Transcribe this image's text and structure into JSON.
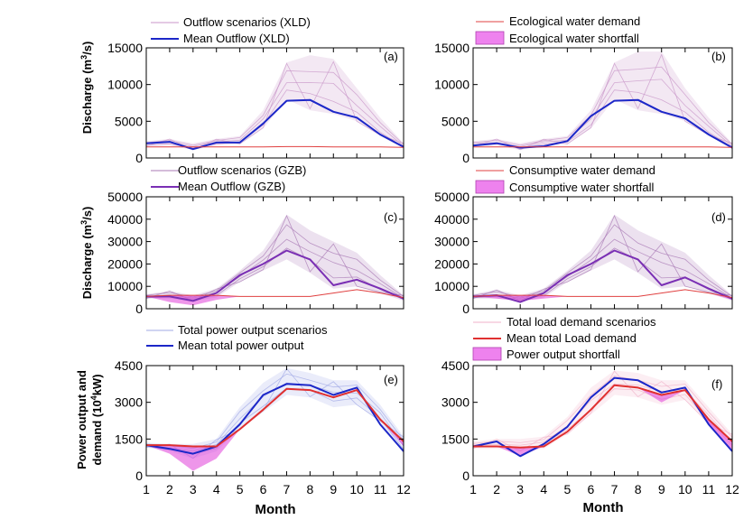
{
  "chart_data": [
    {
      "id": "a",
      "type": "line",
      "panel_label": "(a)",
      "ylabel": "Discharge (m3/s)",
      "ylabel_main": "Discharge (m",
      "ylabel_sup": "3",
      "ylabel_tail": "/s)",
      "ylim": [
        0,
        15000
      ],
      "yticks": [
        "0",
        "5000",
        "10000",
        "15000"
      ],
      "ytick_values": [
        0,
        5000,
        10000,
        15000
      ],
      "x": [
        1,
        2,
        3,
        4,
        5,
        6,
        7,
        8,
        9,
        10,
        11,
        12
      ],
      "legend": [
        "Outflow scenarios (XLD)",
        "Mean Outflow (XLD)"
      ],
      "series": [
        {
          "name": "Outflow scenarios (XLD)",
          "color": "#c896c8",
          "style": "band",
          "lower": [
            1600,
            1700,
            1100,
            1700,
            1900,
            4000,
            8000,
            6500,
            6000,
            5000,
            3000,
            1300
          ],
          "upper": [
            2300,
            2600,
            2000,
            2600,
            3000,
            6500,
            13000,
            14000,
            13500,
            9500,
            5500,
            2000
          ]
        },
        {
          "name": "Mean Outflow (XLD)",
          "color": "#1c27c8",
          "width": 2,
          "values": [
            2000,
            2200,
            1200,
            2100,
            2100,
            4700,
            7800,
            7900,
            6300,
            5500,
            3200,
            1500
          ]
        },
        {
          "name": "Ecological water demand",
          "color": "#e04040",
          "width": 1,
          "values": [
            1500,
            1500,
            1500,
            1500,
            1500,
            1500,
            1550,
            1550,
            1500,
            1500,
            1500,
            1450
          ]
        }
      ]
    },
    {
      "id": "b",
      "type": "line",
      "panel_label": "(b)",
      "ylim": [
        0,
        15000
      ],
      "yticks": [
        "0",
        "5000",
        "10000",
        "15000"
      ],
      "ytick_values": [
        0,
        5000,
        10000,
        15000
      ],
      "x": [
        1,
        2,
        3,
        4,
        5,
        6,
        7,
        8,
        9,
        10,
        11,
        12
      ],
      "legend": [
        "Ecological water demand",
        "Ecological water shortfall"
      ],
      "series": [
        {
          "name": "Outflow scenarios",
          "color": "#c896c8",
          "style": "band",
          "lower": [
            1600,
            1700,
            1100,
            1700,
            1900,
            4000,
            8000,
            6500,
            6000,
            5000,
            3000,
            1300
          ],
          "upper": [
            2300,
            2600,
            2000,
            2600,
            3000,
            6500,
            13000,
            14500,
            14500,
            9500,
            5500,
            2000
          ]
        },
        {
          "name": "Mean Outflow",
          "color": "#1c27c8",
          "width": 2,
          "values": [
            1700,
            2000,
            1400,
            1600,
            2300,
            5700,
            7800,
            7900,
            6300,
            5400,
            3200,
            1400
          ]
        },
        {
          "name": "Ecological water demand",
          "color": "#e04040",
          "width": 1,
          "values": [
            1500,
            1500,
            1500,
            1500,
            1500,
            1500,
            1500,
            1500,
            1500,
            1500,
            1500,
            1450
          ]
        }
      ]
    },
    {
      "id": "c",
      "type": "line",
      "panel_label": "(c)",
      "ylabel": "Discharge (m3/s)",
      "ylabel_main": "Discharge (m",
      "ylabel_sup": "3",
      "ylabel_tail": "/s)",
      "ylim": [
        0,
        50000
      ],
      "yticks": [
        "0",
        "10000",
        "20000",
        "30000",
        "40000",
        "50000"
      ],
      "ytick_values": [
        0,
        10000,
        20000,
        30000,
        40000,
        50000
      ],
      "x": [
        1,
        2,
        3,
        4,
        5,
        6,
        7,
        8,
        9,
        10,
        11,
        12
      ],
      "legend": [
        "Outflow scenarios (GZB)",
        "Mean Outflow (GZB)"
      ],
      "series": [
        {
          "name": "Outflow scenarios (GZB)",
          "color": "#a878b4",
          "style": "band",
          "lower": [
            4500,
            4500,
            3500,
            5000,
            12000,
            17000,
            22000,
            16000,
            9000,
            10000,
            7000,
            3500
          ],
          "upper": [
            6500,
            8000,
            6000,
            9000,
            17000,
            26000,
            42000,
            35000,
            30000,
            25000,
            15000,
            6000
          ]
        },
        {
          "name": "Mean Outflow (GZB)",
          "color": "#7a2fb4",
          "width": 2,
          "values": [
            5500,
            5500,
            3500,
            7000,
            15000,
            20000,
            26000,
            22000,
            10500,
            13000,
            9000,
            4500
          ]
        },
        {
          "name": "Consumptive water demand",
          "color": "#e04040",
          "width": 1,
          "values": [
            5500,
            6000,
            6000,
            6000,
            5500,
            5500,
            5500,
            5500,
            7000,
            8500,
            7000,
            5000
          ]
        },
        {
          "name": "Consumptive water shortfall",
          "color": "#e040d8",
          "style": "shortfall",
          "lower": [
            5500,
            3000,
            1500,
            4000,
            5500,
            5500,
            5500,
            5500,
            7000,
            8500,
            7000,
            4500
          ],
          "upper": [
            5500,
            6000,
            6000,
            6000,
            5500,
            5500,
            5500,
            5500,
            7000,
            8500,
            7000,
            5000
          ]
        }
      ]
    },
    {
      "id": "d",
      "type": "line",
      "panel_label": "(d)",
      "ylim": [
        0,
        50000
      ],
      "yticks": [
        "0",
        "10000",
        "20000",
        "30000",
        "40000",
        "50000"
      ],
      "ytick_values": [
        0,
        10000,
        20000,
        30000,
        40000,
        50000
      ],
      "x": [
        1,
        2,
        3,
        4,
        5,
        6,
        7,
        8,
        9,
        10,
        11,
        12
      ],
      "legend": [
        "Consumptive water demand",
        "Consumptive water shortfall"
      ],
      "series": [
        {
          "name": "Outflow scenarios (GZB)",
          "color": "#a878b4",
          "style": "band",
          "lower": [
            4500,
            4500,
            3500,
            5000,
            12000,
            17000,
            22000,
            16000,
            9000,
            10000,
            7000,
            3500
          ],
          "upper": [
            6500,
            8500,
            6000,
            9000,
            17000,
            26000,
            42000,
            35000,
            30000,
            25000,
            15000,
            6000
          ]
        },
        {
          "name": "Mean Outflow (GZB)",
          "color": "#7a2fb4",
          "width": 2,
          "values": [
            5500,
            6000,
            3000,
            7000,
            15000,
            20000,
            26000,
            22000,
            10500,
            14000,
            9000,
            4500
          ]
        },
        {
          "name": "Consumptive water demand",
          "color": "#e04040",
          "width": 1,
          "values": [
            5500,
            6000,
            6000,
            6000,
            5500,
            5500,
            5500,
            5500,
            7000,
            8500,
            7000,
            5000
          ]
        },
        {
          "name": "Consumptive water shortfall",
          "color": "#e040d8",
          "style": "shortfall",
          "lower": [
            5500,
            4500,
            3500,
            4500,
            5500,
            5500,
            5500,
            5500,
            7000,
            8500,
            7000,
            4000
          ],
          "upper": [
            5500,
            6000,
            6000,
            6000,
            5500,
            5500,
            5500,
            5500,
            7000,
            8500,
            7000,
            5000
          ]
        }
      ]
    },
    {
      "id": "e",
      "type": "line",
      "panel_label": "(e)",
      "ylabel": "Power output and demand (10^4kW)",
      "ylabel_line1": "Power output and",
      "ylabel_main": "demand (10",
      "ylabel_sup": "4",
      "ylabel_tail": "kW)",
      "ylim": [
        0,
        4500
      ],
      "yticks": [
        "0",
        "1500",
        "3000",
        "4500"
      ],
      "ytick_values": [
        0,
        1500,
        3000,
        4500
      ],
      "x": [
        1,
        2,
        3,
        4,
        5,
        6,
        7,
        8,
        9,
        10,
        11,
        12
      ],
      "xticks": [
        "1",
        "2",
        "3",
        "4",
        "5",
        "6",
        "7",
        "8",
        "9",
        "10",
        "11",
        "12"
      ],
      "xlabel": "Month",
      "legend": [
        "Total power output scenarios",
        "Mean total power output"
      ],
      "series": [
        {
          "name": "Total power output scenarios",
          "color": "#a0a8e6",
          "style": "band",
          "lower": [
            1150,
            1000,
            700,
            1000,
            1900,
            2600,
            3300,
            3200,
            2800,
            2900,
            2200,
            900
          ],
          "upper": [
            1350,
            1300,
            1300,
            1500,
            2800,
            3800,
            4400,
            4200,
            3900,
            3900,
            2900,
            1600
          ]
        },
        {
          "name": "Mean total power output",
          "color": "#1c27c8",
          "width": 2,
          "values": [
            1250,
            1100,
            900,
            1200,
            2100,
            3300,
            3750,
            3700,
            3300,
            3600,
            2100,
            1000
          ]
        },
        {
          "name": "Total load demand",
          "color": "#e03030",
          "width": 2,
          "values": [
            1250,
            1250,
            1200,
            1200,
            1900,
            2700,
            3550,
            3500,
            3200,
            3500,
            2300,
            1400
          ]
        },
        {
          "name": "Power output shortfall",
          "color": "#e040d8",
          "style": "shortfall",
          "lower": [
            1250,
            900,
            200,
            700,
            1900,
            2700,
            3550,
            3500,
            3200,
            3500,
            2300,
            1200
          ],
          "upper": [
            1250,
            1250,
            1200,
            1200,
            1900,
            2700,
            3550,
            3500,
            3200,
            3500,
            2300,
            1400
          ]
        }
      ]
    },
    {
      "id": "f",
      "type": "line",
      "panel_label": "(f)",
      "ylim": [
        0,
        4500
      ],
      "yticks": [
        "0",
        "1500",
        "3000",
        "4500"
      ],
      "ytick_values": [
        0,
        1500,
        3000,
        4500
      ],
      "x": [
        1,
        2,
        3,
        4,
        5,
        6,
        7,
        8,
        9,
        10,
        11,
        12
      ],
      "xticks": [
        "1",
        "2",
        "3",
        "4",
        "5",
        "6",
        "7",
        "8",
        "9",
        "10",
        "11",
        "12"
      ],
      "xlabel": "Month",
      "legend": [
        "Total load demand scenarios",
        "Mean total Load demand",
        "Power output shortfall"
      ],
      "series": [
        {
          "name": "Total load demand scenarios",
          "color": "#f0b0c8",
          "style": "band",
          "lower": [
            1100,
            1100,
            1000,
            1100,
            1700,
            2500,
            3300,
            3200,
            2900,
            3100,
            2100,
            1100
          ],
          "upper": [
            1400,
            1500,
            1500,
            1600,
            2400,
            3600,
            4300,
            4200,
            3900,
            3900,
            2800,
            1700
          ]
        },
        {
          "name": "Mean total power output",
          "color": "#1c27c8",
          "width": 2,
          "values": [
            1200,
            1400,
            800,
            1300,
            2000,
            3200,
            4000,
            3900,
            3400,
            3600,
            2100,
            1000
          ]
        },
        {
          "name": "Mean total Load demand",
          "color": "#e03030",
          "width": 2,
          "values": [
            1200,
            1200,
            1150,
            1200,
            1800,
            2700,
            3700,
            3600,
            3300,
            3500,
            2300,
            1400
          ]
        },
        {
          "name": "Power output shortfall",
          "color": "#e040d8",
          "style": "shortfall",
          "lower": [
            1200,
            1200,
            800,
            1200,
            1800,
            2700,
            3700,
            3600,
            3000,
            3500,
            2100,
            1000
          ],
          "upper": [
            1200,
            1200,
            1150,
            1200,
            1800,
            2700,
            3700,
            3600,
            3300,
            3500,
            2300,
            1400
          ]
        }
      ]
    }
  ]
}
